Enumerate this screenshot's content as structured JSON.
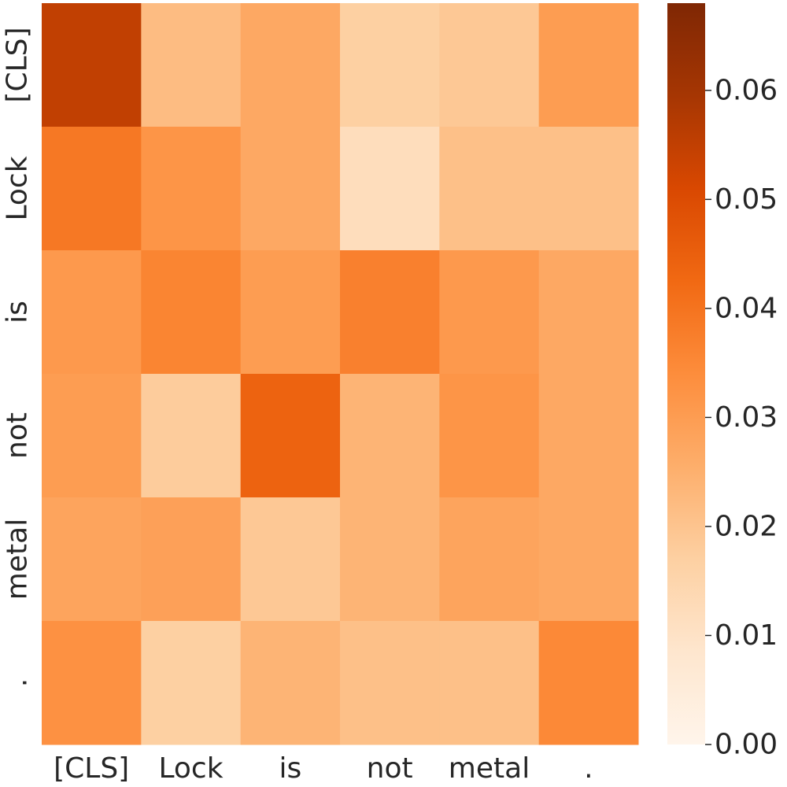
{
  "chart_data": {
    "type": "heatmap",
    "title": "",
    "xlabel": "",
    "ylabel": "",
    "x_labels": [
      "[CLS]",
      "Lock",
      "is",
      "not",
      "metal",
      "."
    ],
    "y_labels": [
      "[CLS]",
      "Lock",
      "is",
      "not",
      "metal",
      "."
    ],
    "values": [
      [
        0.055,
        0.022,
        0.027,
        0.017,
        0.019,
        0.03
      ],
      [
        0.039,
        0.032,
        0.027,
        0.012,
        0.021,
        0.021
      ],
      [
        0.031,
        0.036,
        0.03,
        0.037,
        0.031,
        0.027
      ],
      [
        0.03,
        0.018,
        0.044,
        0.024,
        0.032,
        0.027
      ],
      [
        0.028,
        0.029,
        0.019,
        0.024,
        0.028,
        0.027
      ],
      [
        0.033,
        0.017,
        0.024,
        0.021,
        0.021,
        0.035
      ]
    ],
    "colorbar": {
      "min": 0.0,
      "max": 0.068,
      "ticks": [
        0.0,
        0.01,
        0.02,
        0.03,
        0.04,
        0.05,
        0.06
      ],
      "tick_labels": [
        "0.00",
        "0.01",
        "0.02",
        "0.03",
        "0.04",
        "0.05",
        "0.06"
      ],
      "colormap": "Oranges",
      "stops": [
        "#fff5eb",
        "#fee6ce",
        "#fdd0a2",
        "#fdae6b",
        "#fd8d3c",
        "#f16913",
        "#d94801",
        "#a63603",
        "#7f2704"
      ]
    }
  }
}
